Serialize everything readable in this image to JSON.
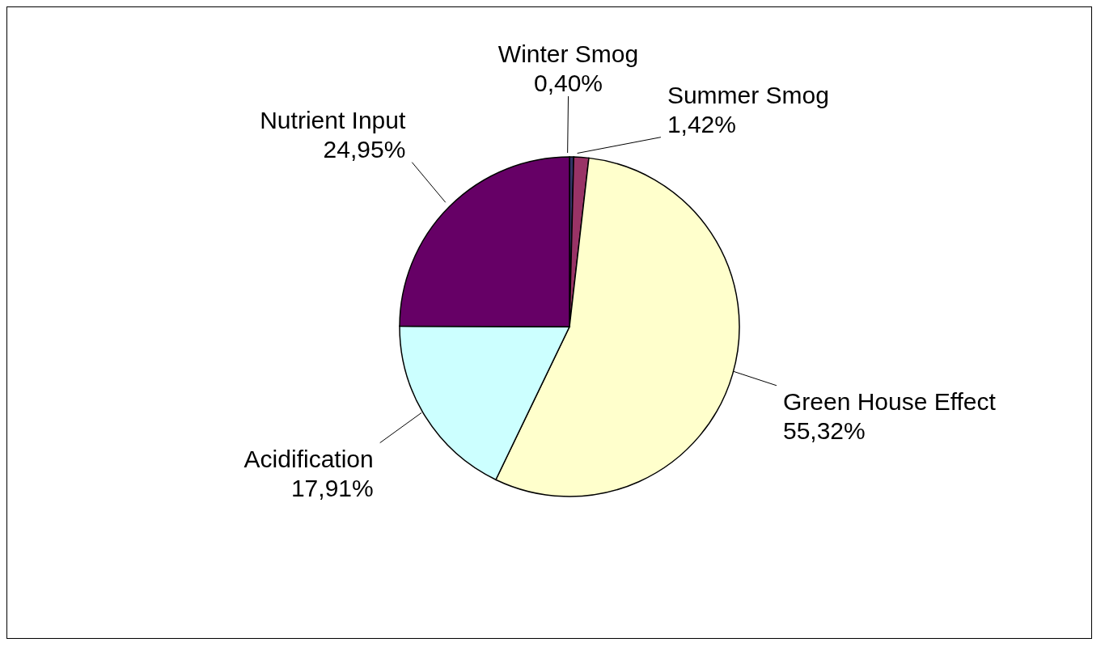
{
  "chart_data": {
    "type": "pie",
    "categories": [
      "Winter Smog",
      "Summer Smog",
      "Green House Effect",
      "Acidification",
      "Nutrient Input"
    ],
    "values": [
      0.4,
      1.42,
      55.32,
      17.91,
      24.95
    ],
    "value_labels": [
      "0,40%",
      "1,42%",
      "55,32%",
      "17,91%",
      "24,95%"
    ],
    "colors": [
      "#333366",
      "#993366",
      "#ffffcc",
      "#ccffff",
      "#660066"
    ],
    "legend": false
  }
}
